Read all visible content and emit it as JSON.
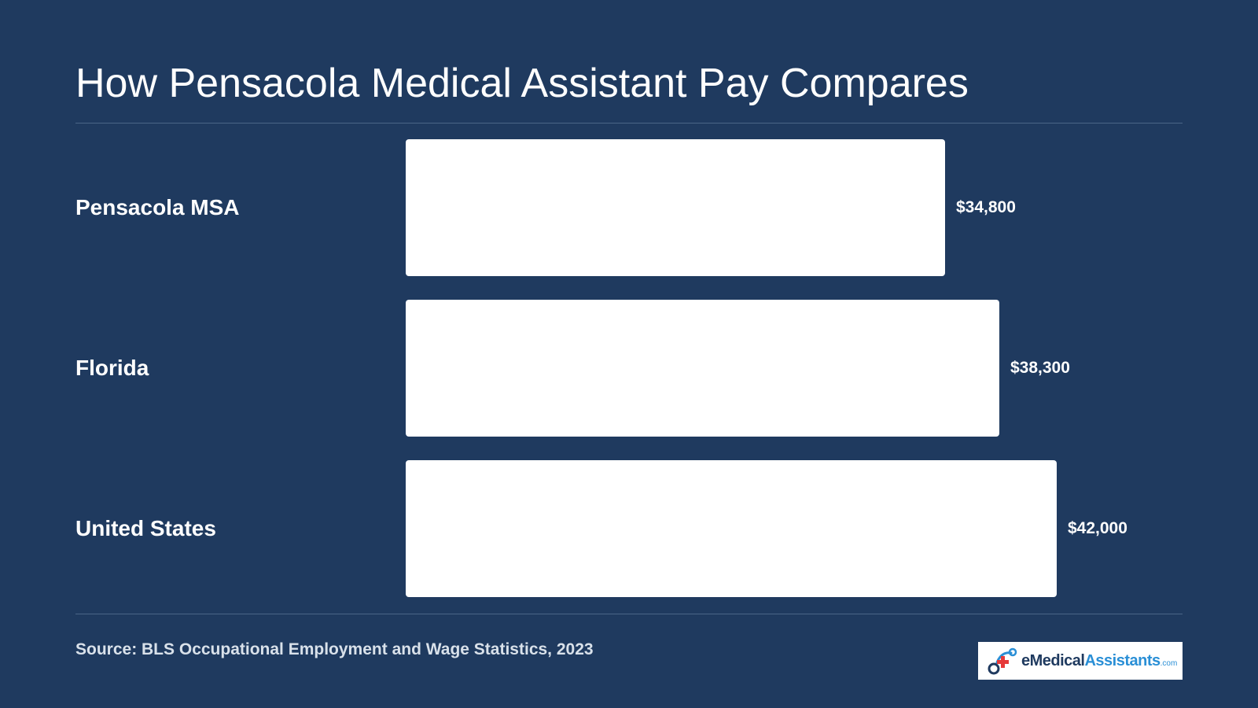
{
  "title": "How Pensacola Medical Assistant Pay Compares",
  "source": "Source: BLS Occupational Employment and Wage Statistics, 2023",
  "logo": {
    "e": "e",
    "medical": "Medical",
    "assistants": "Assistants",
    "com": ".com"
  },
  "colors": {
    "background": "#1f3a5f",
    "bar": "#ffffff",
    "text": "#ffffff",
    "brand_dark": "#1f3a5f",
    "brand_blue": "#2a8fd6",
    "brand_red": "#e63a3a"
  },
  "chart_data": {
    "type": "bar",
    "orientation": "horizontal",
    "categories": [
      "Pensacola MSA",
      "Florida",
      "United States"
    ],
    "values": [
      34800,
      38300,
      42000
    ],
    "value_labels": [
      "$34,800",
      "$38,300",
      "$42,000"
    ],
    "title": "How Pensacola Medical Assistant Pay Compares",
    "xlabel": "",
    "ylabel": "",
    "xlim": [
      0,
      42000
    ],
    "grid": false,
    "legend": "none"
  }
}
